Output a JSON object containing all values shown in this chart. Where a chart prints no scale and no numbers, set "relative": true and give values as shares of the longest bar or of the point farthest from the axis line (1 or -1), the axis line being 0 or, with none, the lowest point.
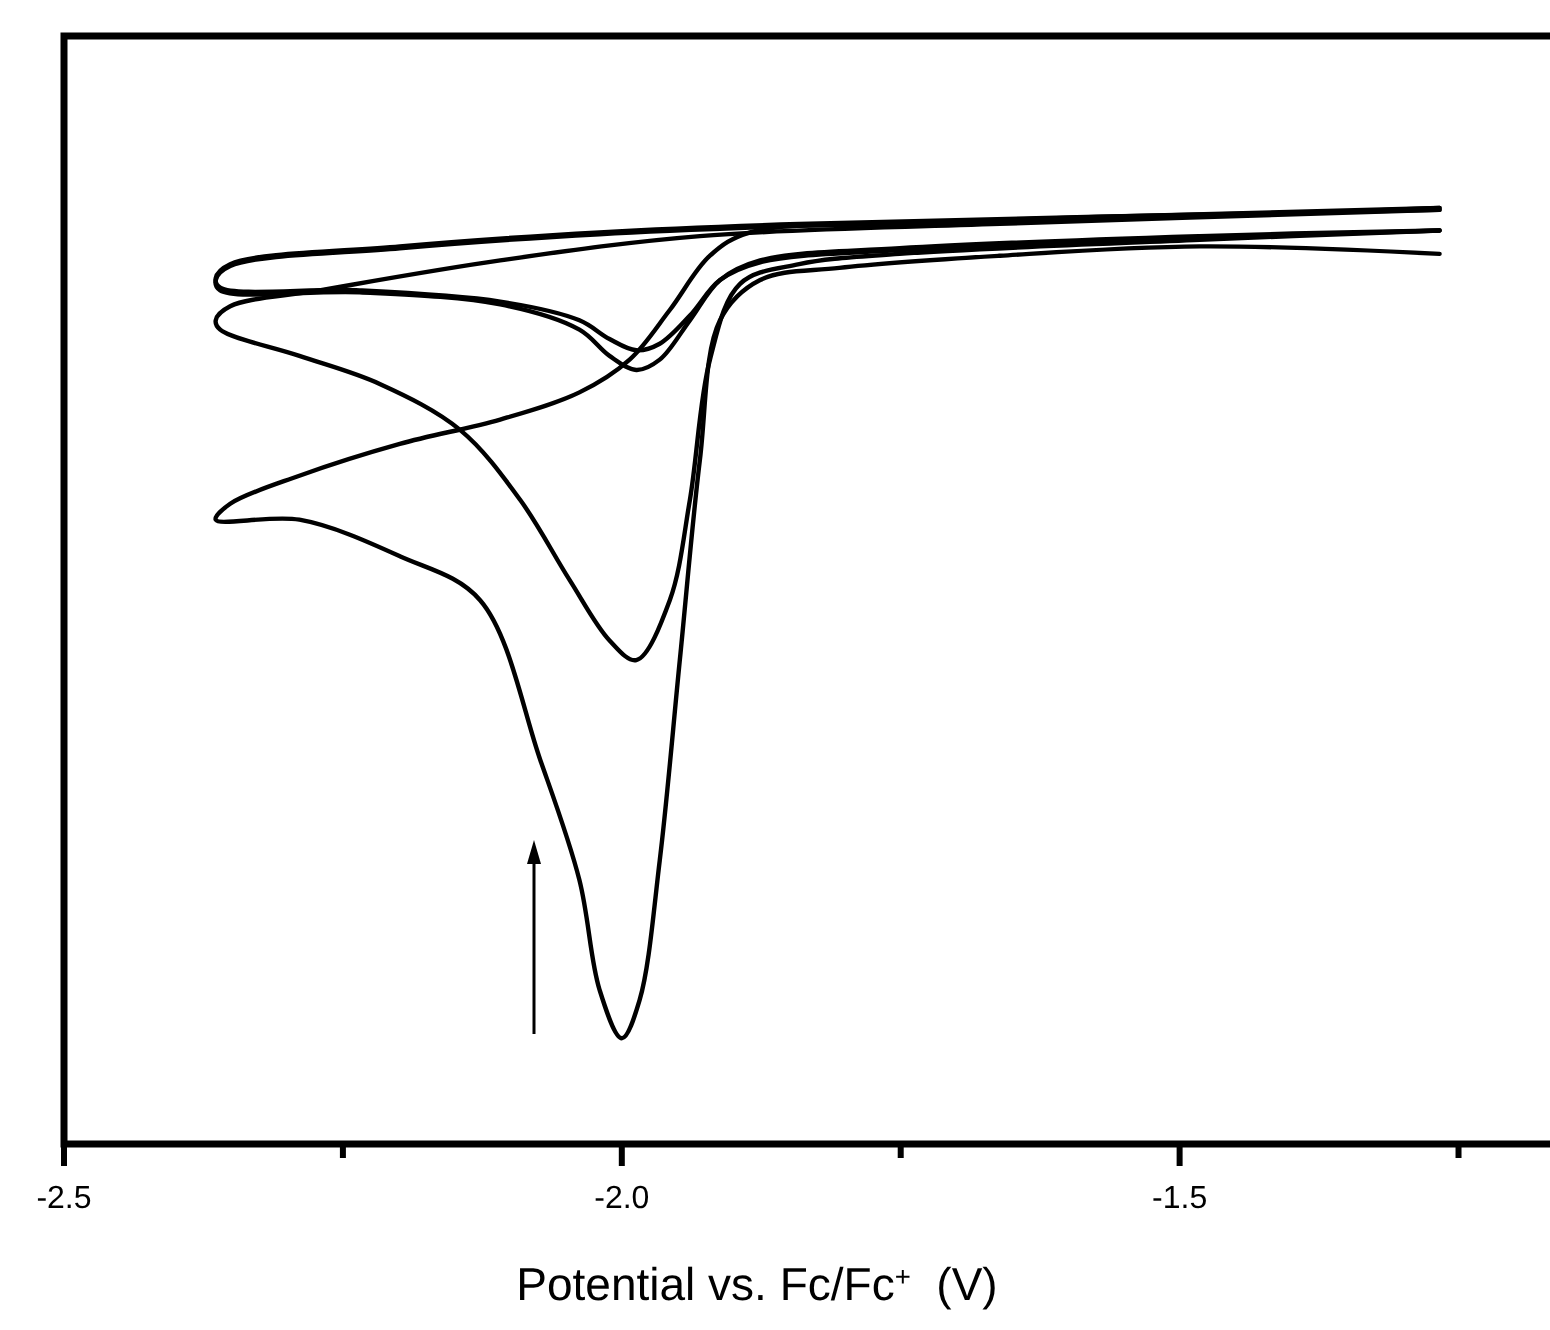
{
  "chart_data": {
    "type": "line",
    "relative": true,
    "xlabel": "Potential vs. Fc/Fc$^{+}$  (V)",
    "xlim": [
      -2.5,
      -1.168
    ],
    "xticks": [
      {
        "value": -2.5,
        "label": "-2.5"
      },
      {
        "value": -2.25,
        "label": null
      },
      {
        "value": -2.0,
        "label": "-2.0"
      },
      {
        "value": -1.75,
        "label": null
      },
      {
        "value": -1.5,
        "label": "-1.5"
      },
      {
        "value": -1.25,
        "label": null
      }
    ],
    "tick_labels": "x",
    "marker": "none",
    "line_style": "solid",
    "series": [
      {
        "color": "#000000",
        "x": [
          -1.267,
          -1.482,
          -1.661,
          -1.805,
          -1.876,
          -1.912,
          -1.93,
          -1.948,
          -1.966,
          -1.984,
          -2.0,
          -2.02,
          -2.038,
          -2.073,
          -2.127,
          -2.199,
          -2.289,
          -2.364,
          -2.351,
          -2.289,
          -2.199,
          -2.109,
          -2.038,
          -1.993,
          -1.957,
          -1.921,
          -1.885,
          -1.751,
          -1.482,
          -1.267
        ],
        "values": [
          0.951,
          0.959,
          0.949,
          0.936,
          0.923,
          0.88,
          0.731,
          0.517,
          0.303,
          0.154,
          0.113,
          0.165,
          0.282,
          0.41,
          0.581,
          0.628,
          0.667,
          0.667,
          0.684,
          0.714,
          0.748,
          0.774,
          0.803,
          0.838,
          0.891,
          0.949,
          0.974,
          0.983,
          0.991,
          1.0
        ]
      },
      {
        "color": "#000000",
        "x": [
          -1.267,
          -1.482,
          -1.751,
          -1.841,
          -1.894,
          -1.921,
          -1.939,
          -1.957,
          -1.987,
          -2.011,
          -2.047,
          -2.091,
          -2.145,
          -2.217,
          -2.289,
          -2.36,
          -2.364,
          -2.351,
          -2.271,
          -2.109,
          -1.93,
          -1.661,
          -1.267
        ],
        "values": [
          0.976,
          0.966,
          0.951,
          0.94,
          0.919,
          0.838,
          0.688,
          0.581,
          0.517,
          0.538,
          0.603,
          0.688,
          0.763,
          0.812,
          0.842,
          0.87,
          0.88,
          0.895,
          0.912,
          0.944,
          0.97,
          0.983,
          0.998
        ]
      },
      {
        "color": "#000000",
        "x": [
          -1.267,
          -1.482,
          -1.751,
          -1.876,
          -1.912,
          -1.939,
          -1.966,
          -1.987,
          -2.011,
          -2.038,
          -2.109,
          -2.235,
          -2.36,
          -2.364,
          -2.351,
          -2.199,
          -2.02,
          -1.841,
          -1.267
        ],
        "values": [
          0.976,
          0.97,
          0.957,
          0.944,
          0.923,
          0.88,
          0.838,
          0.827,
          0.842,
          0.87,
          0.897,
          0.91,
          0.912,
          0.923,
          0.938,
          0.957,
          0.972,
          0.981,
          1.0
        ]
      },
      {
        "color": "#000000",
        "x": [
          -1.267,
          -1.482,
          -1.751,
          -1.876,
          -1.912,
          -1.939,
          -1.966,
          -1.987,
          -2.011,
          -2.038,
          -2.109,
          -2.235,
          -2.36,
          -2.364,
          -2.351,
          -2.199,
          -2.02,
          -1.841,
          -1.267
        ],
        "values": [
          0.976,
          0.968,
          0.955,
          0.942,
          0.923,
          0.885,
          0.855,
          0.848,
          0.86,
          0.88,
          0.9,
          0.912,
          0.915,
          0.925,
          0.94,
          0.959,
          0.974,
          0.983,
          0.998
        ]
      }
    ]
  }
}
